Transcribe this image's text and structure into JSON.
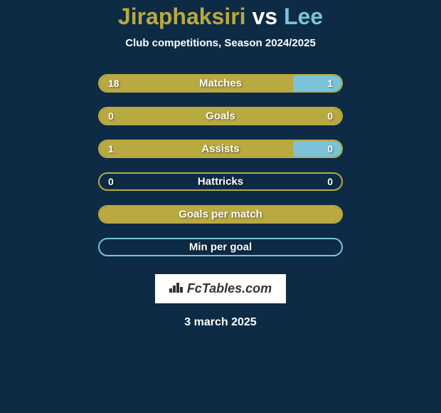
{
  "title": {
    "left": "Jiraphaksiri",
    "vs": "vs",
    "right": "Lee"
  },
  "subtitle": "Club competitions, Season 2024/2025",
  "colors": {
    "left": "#b9a941",
    "right": "#7ac3d8",
    "background": "#0d2b45",
    "text": "#ffffff"
  },
  "stats": [
    {
      "label": "Matches",
      "left_value": "18",
      "right_value": "1",
      "left_pct": 80,
      "right_pct": 20,
      "border_color": "#b9a941",
      "has_shadows": true
    },
    {
      "label": "Goals",
      "left_value": "0",
      "right_value": "0",
      "left_pct": 100,
      "right_pct": 0,
      "border_color": "#b9a941",
      "has_shadows": true
    },
    {
      "label": "Assists",
      "left_value": "1",
      "right_value": "0",
      "left_pct": 80,
      "right_pct": 20,
      "border_color": "#b9a941",
      "has_shadows": false
    },
    {
      "label": "Hattricks",
      "left_value": "0",
      "right_value": "0",
      "left_pct": 0,
      "right_pct": 0,
      "border_color": "#b9a941",
      "has_shadows": false
    },
    {
      "label": "Goals per match",
      "left_value": "",
      "right_value": "",
      "left_pct": 100,
      "right_pct": 0,
      "border_color": "#b9a941",
      "has_shadows": false
    },
    {
      "label": "Min per goal",
      "left_value": "",
      "right_value": "",
      "left_pct": 0,
      "right_pct": 0,
      "border_color": "#7ac3d8",
      "has_shadows": false
    }
  ],
  "badge": {
    "text": "FcTables.com",
    "icon": "📊"
  },
  "date": "3 march 2025"
}
